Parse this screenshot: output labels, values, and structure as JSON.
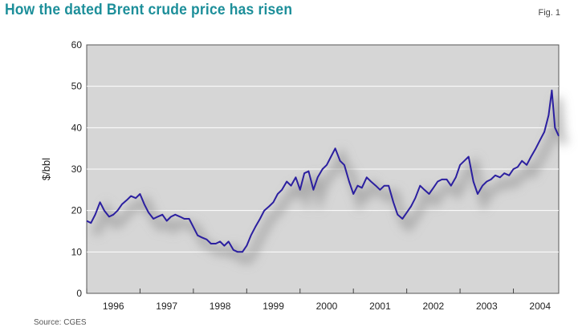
{
  "header": {
    "title": "How the dated Brent crude price has risen",
    "figure_label": "Fig. 1",
    "source": "Source: CGES"
  },
  "colors": {
    "title": "#1d8f9a",
    "plot_background": "#d6d6d6",
    "grid": "#ffffff",
    "line": "#2b1fa0"
  },
  "chart_data": {
    "type": "line",
    "title": "How the dated Brent crude price has risen",
    "xlabel": "",
    "ylabel": "$/bbl",
    "ylim": [
      0,
      60
    ],
    "yticks": [
      0,
      10,
      20,
      30,
      40,
      50,
      60
    ],
    "xlim": [
      1996.0,
      2004.85
    ],
    "xtick_labels": [
      "1996",
      "1997",
      "1998",
      "1999",
      "2000",
      "2001",
      "2002",
      "2003",
      "2004"
    ],
    "grid": true,
    "legend": "none",
    "series": [
      {
        "name": "",
        "x": [
          1996.0,
          1996.08,
          1996.16,
          1996.25,
          1996.33,
          1996.42,
          1996.5,
          1996.58,
          1996.66,
          1996.75,
          1996.83,
          1996.92,
          1997.0,
          1997.08,
          1997.16,
          1997.25,
          1997.33,
          1997.42,
          1997.5,
          1997.58,
          1997.66,
          1997.75,
          1997.83,
          1997.92,
          1998.0,
          1998.08,
          1998.16,
          1998.25,
          1998.33,
          1998.42,
          1998.5,
          1998.58,
          1998.66,
          1998.75,
          1998.83,
          1998.92,
          1999.0,
          1999.08,
          1999.16,
          1999.25,
          1999.33,
          1999.42,
          1999.5,
          1999.58,
          1999.66,
          1999.75,
          1999.83,
          1999.92,
          2000.0,
          2000.08,
          2000.16,
          2000.25,
          2000.33,
          2000.42,
          2000.5,
          2000.58,
          2000.66,
          2000.75,
          2000.83,
          2000.92,
          2001.0,
          2001.08,
          2001.16,
          2001.25,
          2001.33,
          2001.42,
          2001.5,
          2001.58,
          2001.66,
          2001.75,
          2001.83,
          2001.92,
          2002.0,
          2002.08,
          2002.16,
          2002.25,
          2002.33,
          2002.42,
          2002.5,
          2002.58,
          2002.66,
          2002.75,
          2002.83,
          2002.92,
          2003.0,
          2003.08,
          2003.16,
          2003.25,
          2003.33,
          2003.42,
          2003.5,
          2003.58,
          2003.66,
          2003.75,
          2003.83,
          2003.92,
          2004.0,
          2004.08,
          2004.16,
          2004.25,
          2004.33,
          2004.42,
          2004.5,
          2004.58,
          2004.66,
          2004.72,
          2004.78,
          2004.85
        ],
        "y": [
          17.5,
          17.0,
          19.0,
          22.0,
          20.0,
          18.5,
          19.0,
          20.0,
          21.5,
          22.5,
          23.5,
          23.0,
          24.0,
          21.5,
          19.5,
          18.0,
          18.5,
          19.0,
          17.5,
          18.5,
          19.0,
          18.5,
          18.0,
          18.0,
          16.0,
          14.0,
          13.5,
          13.0,
          12.0,
          12.0,
          12.5,
          11.5,
          12.5,
          10.5,
          10.0,
          10.0,
          11.5,
          14.0,
          16.0,
          18.0,
          20.0,
          21.0,
          22.0,
          24.0,
          25.0,
          27.0,
          26.0,
          28.0,
          25.0,
          29.0,
          29.5,
          25.0,
          28.0,
          30.0,
          31.0,
          33.0,
          35.0,
          32.0,
          31.0,
          27.0,
          24.0,
          26.0,
          25.5,
          28.0,
          27.0,
          26.0,
          25.0,
          26.0,
          26.0,
          22.0,
          19.0,
          18.0,
          19.5,
          21.0,
          23.0,
          26.0,
          25.0,
          24.0,
          25.5,
          27.0,
          27.5,
          27.5,
          26.0,
          28.0,
          31.0,
          32.0,
          33.0,
          27.0,
          24.0,
          26.0,
          27.0,
          27.5,
          28.5,
          28.0,
          29.0,
          28.5,
          30.0,
          30.5,
          32.0,
          31.0,
          33.0,
          35.0,
          37.0,
          39.0,
          43.0,
          49.0,
          40.0,
          38.0
        ]
      }
    ]
  }
}
